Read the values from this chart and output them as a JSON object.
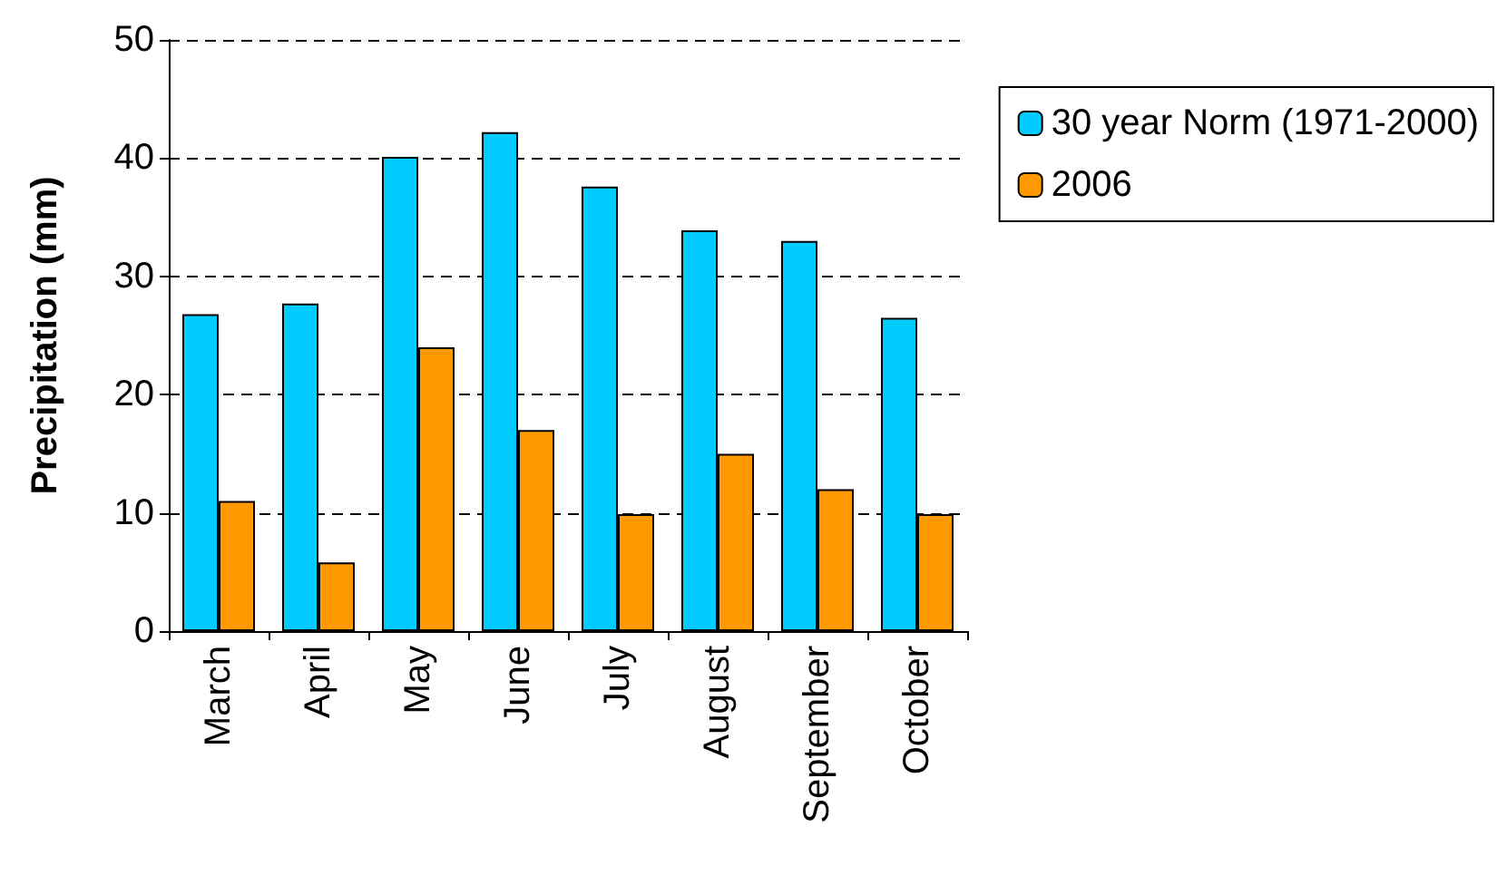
{
  "chart_data": {
    "type": "bar",
    "ylabel": "Precipitation (mm)",
    "categories": [
      "March",
      "April",
      "May",
      "June",
      "July",
      "August",
      "September",
      "October"
    ],
    "series": [
      {
        "name": "30 year Norm (1971-2000)",
        "color": "#00ccff",
        "values": [
          26.8,
          27.7,
          40.1,
          42.2,
          37.6,
          33.9,
          33.0,
          26.5
        ]
      },
      {
        "name": "2006",
        "color": "#ff9900",
        "values": [
          11.0,
          5.8,
          24.0,
          17.0,
          9.9,
          15.0,
          12.0,
          9.9
        ]
      }
    ],
    "ylim": [
      0,
      50
    ],
    "yticks": [
      0,
      10,
      20,
      30,
      40,
      50
    ],
    "grid": "y",
    "legend": "top right"
  }
}
